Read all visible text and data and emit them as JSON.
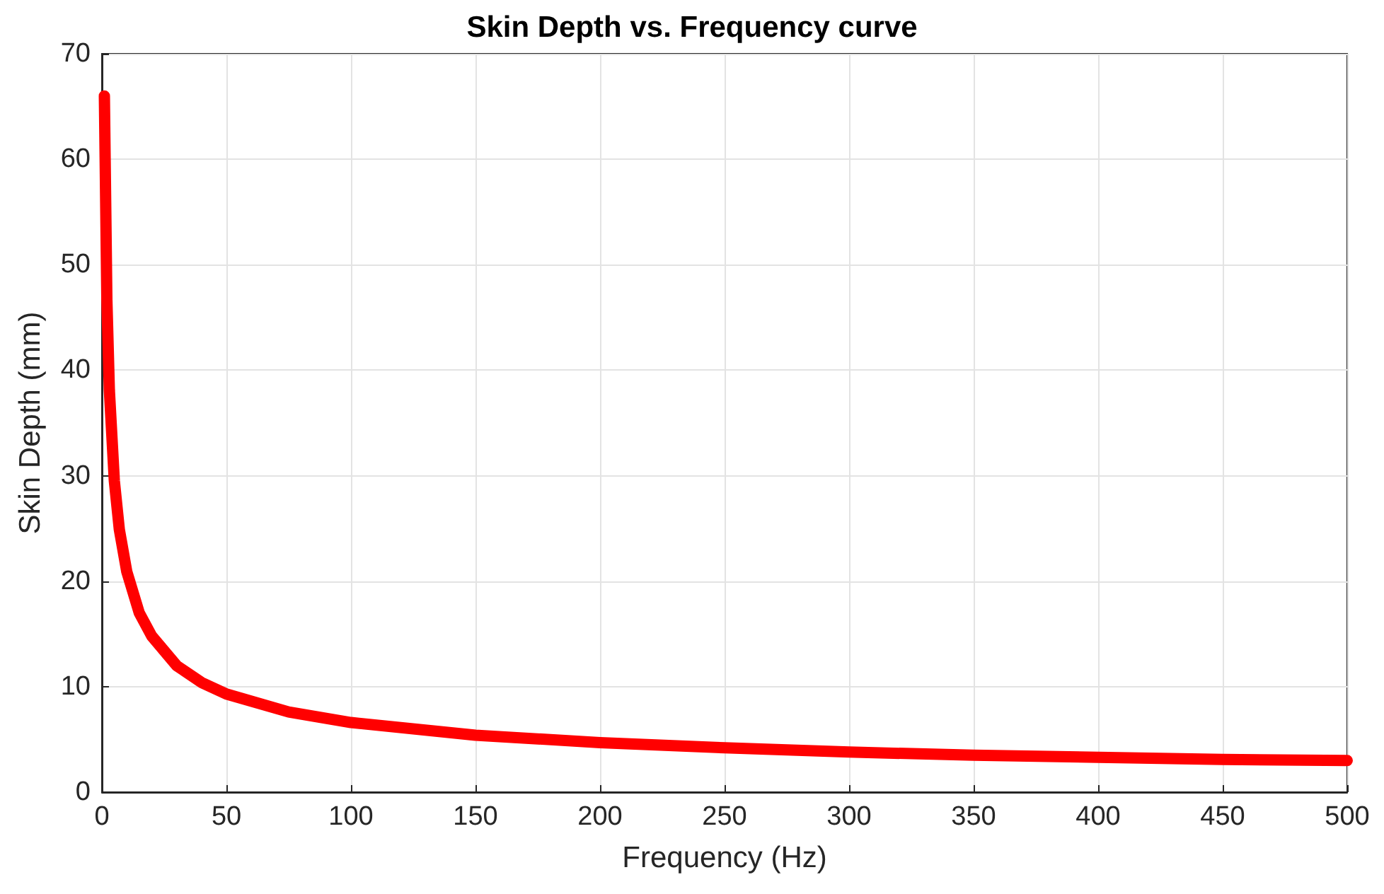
{
  "chart_data": {
    "type": "line",
    "title": "Skin Depth vs. Frequency curve",
    "xlabel": "Frequency (Hz)",
    "ylabel": "Skin Depth (mm)",
    "x": [
      1,
      2,
      3,
      5,
      7,
      10,
      15,
      20,
      30,
      40,
      50,
      75,
      100,
      150,
      200,
      250,
      300,
      350,
      400,
      450,
      500
    ],
    "series": [
      {
        "color": "#ff0000",
        "values": [
          66,
          46.7,
          38.1,
          29.5,
          24.9,
          20.9,
          17,
          14.8,
          12,
          10.4,
          9.3,
          7.6,
          6.6,
          5.4,
          4.7,
          4.2,
          3.8,
          3.5,
          3.3,
          3.1,
          3
        ]
      }
    ],
    "xlim": [
      0,
      500
    ],
    "xticks": [
      0,
      50,
      100,
      150,
      200,
      250,
      300,
      350,
      400,
      450,
      500
    ],
    "ylim": [
      0,
      70
    ],
    "yticks": [
      0,
      10,
      20,
      30,
      40,
      50,
      60,
      70
    ],
    "grid": true,
    "marker": "none",
    "line_style": "solid"
  }
}
